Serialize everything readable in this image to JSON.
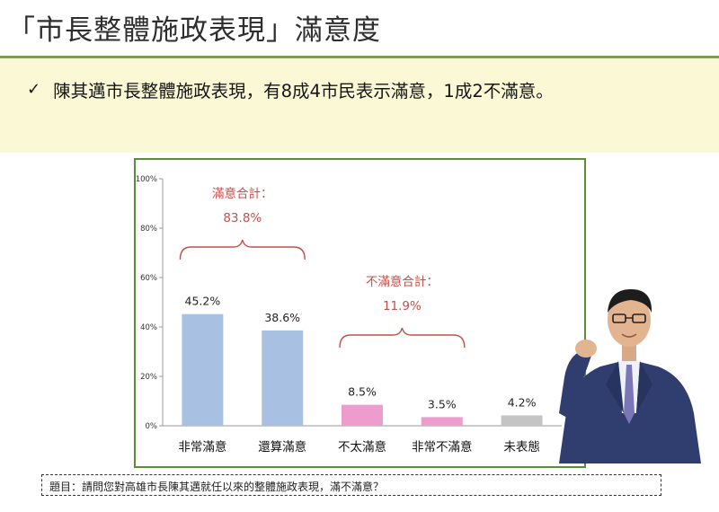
{
  "header": {
    "title": "「市長整體施政表現」滿意度",
    "bullet_check": "✓",
    "bullet_text": "陳其邁市長整體施政表現，有8成4市民表示滿意，1成2不滿意。"
  },
  "chart_data": {
    "type": "bar",
    "categories": [
      "非常滿意",
      "還算滿意",
      "不太滿意",
      "非常不滿意",
      "未表態"
    ],
    "values": [
      45.2,
      38.6,
      8.5,
      3.5,
      4.2
    ],
    "value_labels": [
      "45.2%",
      "38.6%",
      "8.5%",
      "3.5%",
      "4.2%"
    ],
    "bar_colors": [
      "#a8c1e3",
      "#a8c1e3",
      "#ee9ccd",
      "#ee9ccd",
      "#c4c4c4"
    ],
    "ylim": [
      0,
      100
    ],
    "yticks": [
      0,
      20,
      40,
      60,
      80,
      100
    ],
    "ytick_labels": [
      "0%",
      "20%",
      "40%",
      "60%",
      "80%",
      "100%"
    ],
    "grid": false,
    "annotations": [
      {
        "label": "滿意合計：",
        "value": "83.8%",
        "groups": [
          0,
          1
        ],
        "color": "#c0504d"
      },
      {
        "label": "不滿意合計：",
        "value": "11.9%",
        "groups": [
          2,
          3
        ],
        "color": "#c0504d"
      }
    ]
  },
  "footer": {
    "question": "題目：請問您對高雄市長陳其邁就任以來的整體施政表現，滿不滿意？"
  }
}
